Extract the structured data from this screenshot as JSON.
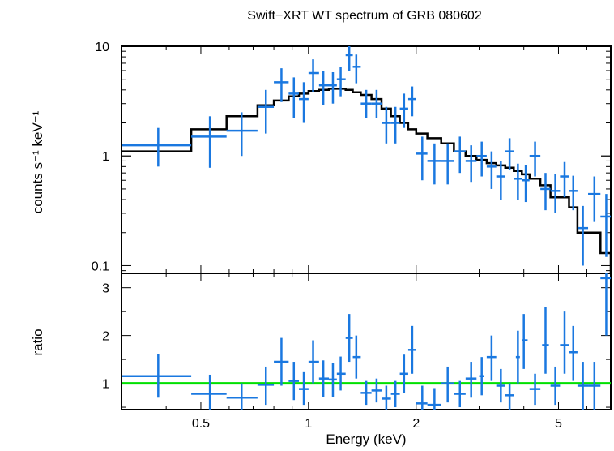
{
  "chart_data": [
    {
      "type": "scatter",
      "panel": "spectrum",
      "title": "Swift−XRT WT spectrum of GRB 080602",
      "xlabel": "Energy (keV)",
      "ylabel": "counts s⁻¹ keV⁻¹",
      "xscale": "log",
      "yscale": "log",
      "xlim": [
        0.3,
        7.0
      ],
      "ylim": [
        0.085,
        10
      ],
      "yticks": [
        0.1,
        1,
        10
      ],
      "ytick_labels": [
        "0.1",
        "1",
        "10"
      ],
      "colors": {
        "data": "#1a78e0",
        "model": "#000000"
      },
      "data_points": [
        {
          "x": 0.38,
          "xlo": 0.3,
          "xhi": 0.47,
          "y": 1.25,
          "ylo": 0.8,
          "yhi": 1.8
        },
        {
          "x": 0.53,
          "xlo": 0.47,
          "xhi": 0.59,
          "y": 1.5,
          "ylo": 0.78,
          "yhi": 2.3
        },
        {
          "x": 0.65,
          "xlo": 0.59,
          "xhi": 0.72,
          "y": 1.7,
          "ylo": 1.0,
          "yhi": 2.5
        },
        {
          "x": 0.76,
          "xlo": 0.72,
          "xhi": 0.8,
          "y": 2.8,
          "ylo": 1.6,
          "yhi": 4.0
        },
        {
          "x": 0.84,
          "xlo": 0.8,
          "xhi": 0.88,
          "y": 4.7,
          "ylo": 3.1,
          "yhi": 6.3
        },
        {
          "x": 0.91,
          "xlo": 0.88,
          "xhi": 0.94,
          "y": 3.7,
          "ylo": 2.2,
          "yhi": 5.2
        },
        {
          "x": 0.97,
          "xlo": 0.94,
          "xhi": 1.0,
          "y": 3.3,
          "ylo": 2.0,
          "yhi": 4.7
        },
        {
          "x": 1.03,
          "xlo": 1.0,
          "xhi": 1.07,
          "y": 5.7,
          "ylo": 3.8,
          "yhi": 7.6
        },
        {
          "x": 1.1,
          "xlo": 1.07,
          "xhi": 1.14,
          "y": 4.4,
          "ylo": 2.9,
          "yhi": 6.0
        },
        {
          "x": 1.17,
          "xlo": 1.14,
          "xhi": 1.2,
          "y": 4.4,
          "ylo": 3.0,
          "yhi": 5.8
        },
        {
          "x": 1.23,
          "xlo": 1.2,
          "xhi": 1.27,
          "y": 5.0,
          "ylo": 3.5,
          "yhi": 6.5
        },
        {
          "x": 1.3,
          "xlo": 1.27,
          "xhi": 1.33,
          "y": 8.3,
          "ylo": 6.0,
          "yhi": 10.0
        },
        {
          "x": 1.36,
          "xlo": 1.33,
          "xhi": 1.4,
          "y": 6.5,
          "ylo": 4.6,
          "yhi": 8.4
        },
        {
          "x": 1.45,
          "xlo": 1.4,
          "xhi": 1.5,
          "y": 3.0,
          "ylo": 2.2,
          "yhi": 4.0
        },
        {
          "x": 1.55,
          "xlo": 1.5,
          "xhi": 1.6,
          "y": 3.0,
          "ylo": 2.2,
          "yhi": 4.0
        },
        {
          "x": 1.65,
          "xlo": 1.6,
          "xhi": 1.7,
          "y": 2.0,
          "ylo": 1.3,
          "yhi": 2.8
        },
        {
          "x": 1.75,
          "xlo": 1.7,
          "xhi": 1.8,
          "y": 2.0,
          "ylo": 1.3,
          "yhi": 2.8
        },
        {
          "x": 1.85,
          "xlo": 1.8,
          "xhi": 1.9,
          "y": 2.7,
          "ylo": 1.8,
          "yhi": 3.7
        },
        {
          "x": 1.95,
          "xlo": 1.9,
          "xhi": 2.0,
          "y": 3.3,
          "ylo": 2.3,
          "yhi": 4.3
        },
        {
          "x": 2.08,
          "xlo": 2.0,
          "xhi": 2.15,
          "y": 1.05,
          "ylo": 0.6,
          "yhi": 1.5
        },
        {
          "x": 2.25,
          "xlo": 2.15,
          "xhi": 2.35,
          "y": 0.9,
          "ylo": 0.55,
          "yhi": 1.3
        },
        {
          "x": 2.45,
          "xlo": 2.35,
          "xhi": 2.55,
          "y": 0.9,
          "ylo": 0.55,
          "yhi": 1.3
        },
        {
          "x": 2.65,
          "xlo": 2.55,
          "xhi": 2.75,
          "y": 1.1,
          "ylo": 0.7,
          "yhi": 1.5
        },
        {
          "x": 2.85,
          "xlo": 2.75,
          "xhi": 2.95,
          "y": 0.9,
          "ylo": 0.58,
          "yhi": 1.25
        },
        {
          "x": 3.05,
          "xlo": 2.95,
          "xhi": 3.15,
          "y": 1.0,
          "ylo": 0.65,
          "yhi": 1.35
        },
        {
          "x": 3.25,
          "xlo": 3.15,
          "xhi": 3.35,
          "y": 0.8,
          "ylo": 0.5,
          "yhi": 1.1
        },
        {
          "x": 3.45,
          "xlo": 3.35,
          "xhi": 3.55,
          "y": 0.65,
          "ylo": 0.4,
          "yhi": 0.9
        },
        {
          "x": 3.65,
          "xlo": 3.55,
          "xhi": 3.75,
          "y": 1.1,
          "ylo": 0.75,
          "yhi": 1.45
        },
        {
          "x": 3.85,
          "xlo": 3.75,
          "xhi": 3.95,
          "y": 0.62,
          "ylo": 0.4,
          "yhi": 0.85
        },
        {
          "x": 4.05,
          "xlo": 3.95,
          "xhi": 4.15,
          "y": 0.6,
          "ylo": 0.38,
          "yhi": 0.82
        },
        {
          "x": 4.3,
          "xlo": 4.15,
          "xhi": 4.45,
          "y": 1.0,
          "ylo": 0.65,
          "yhi": 1.35
        },
        {
          "x": 4.6,
          "xlo": 4.45,
          "xhi": 4.75,
          "y": 0.5,
          "ylo": 0.32,
          "yhi": 0.7
        },
        {
          "x": 4.9,
          "xlo": 4.75,
          "xhi": 5.05,
          "y": 0.48,
          "ylo": 0.3,
          "yhi": 0.68
        },
        {
          "x": 5.2,
          "xlo": 5.05,
          "xhi": 5.35,
          "y": 0.65,
          "ylo": 0.42,
          "yhi": 0.88
        },
        {
          "x": 5.5,
          "xlo": 5.35,
          "xhi": 5.65,
          "y": 0.48,
          "ylo": 0.32,
          "yhi": 0.66
        },
        {
          "x": 5.85,
          "xlo": 5.65,
          "xhi": 6.05,
          "y": 0.22,
          "ylo": 0.1,
          "yhi": 0.35
        },
        {
          "x": 6.3,
          "xlo": 6.05,
          "xhi": 6.55,
          "y": 0.45,
          "ylo": 0.25,
          "yhi": 0.65
        },
        {
          "x": 6.8,
          "xlo": 6.55,
          "xhi": 7.0,
          "y": 0.28,
          "ylo": 0.12,
          "yhi": 0.45
        }
      ],
      "model_steps": [
        {
          "x0": 0.3,
          "x1": 0.47,
          "y": 1.1
        },
        {
          "x0": 0.47,
          "x1": 0.59,
          "y": 1.75
        },
        {
          "x0": 0.59,
          "x1": 0.72,
          "y": 2.3
        },
        {
          "x0": 0.72,
          "x1": 0.8,
          "y": 2.9
        },
        {
          "x0": 0.8,
          "x1": 0.88,
          "y": 3.2
        },
        {
          "x0": 0.88,
          "x1": 0.94,
          "y": 3.5
        },
        {
          "x0": 0.94,
          "x1": 1.0,
          "y": 3.7
        },
        {
          "x0": 1.0,
          "x1": 1.07,
          "y": 3.9
        },
        {
          "x0": 1.07,
          "x1": 1.14,
          "y": 4.0
        },
        {
          "x0": 1.14,
          "x1": 1.2,
          "y": 4.1
        },
        {
          "x0": 1.2,
          "x1": 1.27,
          "y": 4.1
        },
        {
          "x0": 1.27,
          "x1": 1.33,
          "y": 4.0
        },
        {
          "x0": 1.33,
          "x1": 1.4,
          "y": 3.8
        },
        {
          "x0": 1.4,
          "x1": 1.5,
          "y": 3.6
        },
        {
          "x0": 1.5,
          "x1": 1.6,
          "y": 3.3
        },
        {
          "x0": 1.6,
          "x1": 1.7,
          "y": 2.7
        },
        {
          "x0": 1.7,
          "x1": 1.8,
          "y": 2.3
        },
        {
          "x0": 1.8,
          "x1": 1.9,
          "y": 2.0
        },
        {
          "x0": 1.9,
          "x1": 2.0,
          "y": 1.75
        },
        {
          "x0": 2.0,
          "x1": 2.15,
          "y": 1.6
        },
        {
          "x0": 2.15,
          "x1": 2.35,
          "y": 1.45
        },
        {
          "x0": 2.35,
          "x1": 2.55,
          "y": 1.3
        },
        {
          "x0": 2.55,
          "x1": 2.75,
          "y": 1.1
        },
        {
          "x0": 2.75,
          "x1": 2.95,
          "y": 1.0
        },
        {
          "x0": 2.95,
          "x1": 3.15,
          "y": 0.92
        },
        {
          "x0": 3.15,
          "x1": 3.35,
          "y": 0.86
        },
        {
          "x0": 3.35,
          "x1": 3.55,
          "y": 0.82
        },
        {
          "x0": 3.55,
          "x1": 3.75,
          "y": 0.78
        },
        {
          "x0": 3.75,
          "x1": 3.95,
          "y": 0.73
        },
        {
          "x0": 3.95,
          "x1": 4.15,
          "y": 0.68
        },
        {
          "x0": 4.15,
          "x1": 4.45,
          "y": 0.62
        },
        {
          "x0": 4.45,
          "x1": 4.75,
          "y": 0.54
        },
        {
          "x0": 4.75,
          "x1": 5.05,
          "y": 0.42
        },
        {
          "x0": 5.05,
          "x1": 5.35,
          "y": 0.42
        },
        {
          "x0": 5.35,
          "x1": 5.65,
          "y": 0.34
        },
        {
          "x0": 5.65,
          "x1": 6.05,
          "y": 0.2
        },
        {
          "x0": 6.05,
          "x1": 6.55,
          "y": 0.2
        },
        {
          "x0": 6.55,
          "x1": 7.0,
          "y": 0.13
        }
      ]
    },
    {
      "type": "scatter",
      "panel": "ratio",
      "xlabel": "Energy (keV)",
      "ylabel": "ratio",
      "xscale": "log",
      "yscale": "linear",
      "xlim": [
        0.3,
        7.0
      ],
      "ylim": [
        0.45,
        3.3
      ],
      "yticks": [
        1,
        2,
        3
      ],
      "ytick_labels": [
        "1",
        "2",
        "3"
      ],
      "xticks": [
        0.5,
        1,
        2,
        5
      ],
      "xtick_labels": [
        "0.5",
        "1",
        "2",
        "5"
      ],
      "reference_line": 1,
      "colors": {
        "data": "#1a78e0",
        "reference": "#00e000"
      },
      "data_points": [
        {
          "x": 0.38,
          "xlo": 0.3,
          "xhi": 0.47,
          "y": 1.15,
          "ylo": 0.7,
          "yhi": 1.62
        },
        {
          "x": 0.53,
          "xlo": 0.47,
          "xhi": 0.59,
          "y": 0.78,
          "ylo": 0.45,
          "yhi": 1.18
        },
        {
          "x": 0.65,
          "xlo": 0.59,
          "xhi": 0.72,
          "y": 0.7,
          "ylo": 0.45,
          "yhi": 1.0
        },
        {
          "x": 0.76,
          "xlo": 0.72,
          "xhi": 0.8,
          "y": 0.97,
          "ylo": 0.55,
          "yhi": 1.35
        },
        {
          "x": 0.84,
          "xlo": 0.8,
          "xhi": 0.88,
          "y": 1.45,
          "ylo": 0.95,
          "yhi": 1.95
        },
        {
          "x": 0.91,
          "xlo": 0.88,
          "xhi": 0.94,
          "y": 1.05,
          "ylo": 0.65,
          "yhi": 1.45
        },
        {
          "x": 0.97,
          "xlo": 0.94,
          "xhi": 1.0,
          "y": 0.88,
          "ylo": 0.55,
          "yhi": 1.25
        },
        {
          "x": 1.03,
          "xlo": 1.0,
          "xhi": 1.07,
          "y": 1.45,
          "ylo": 1.0,
          "yhi": 1.9
        },
        {
          "x": 1.1,
          "xlo": 1.07,
          "xhi": 1.14,
          "y": 1.1,
          "ylo": 0.72,
          "yhi": 1.48
        },
        {
          "x": 1.17,
          "xlo": 1.14,
          "xhi": 1.2,
          "y": 1.08,
          "ylo": 0.72,
          "yhi": 1.42
        },
        {
          "x": 1.23,
          "xlo": 1.2,
          "xhi": 1.27,
          "y": 1.2,
          "ylo": 0.85,
          "yhi": 1.56
        },
        {
          "x": 1.3,
          "xlo": 1.27,
          "xhi": 1.33,
          "y": 1.95,
          "ylo": 1.45,
          "yhi": 2.45
        },
        {
          "x": 1.36,
          "xlo": 1.33,
          "xhi": 1.4,
          "y": 1.55,
          "ylo": 1.1,
          "yhi": 2.0
        },
        {
          "x": 1.45,
          "xlo": 1.4,
          "xhi": 1.5,
          "y": 0.8,
          "ylo": 0.55,
          "yhi": 1.05
        },
        {
          "x": 1.55,
          "xlo": 1.5,
          "xhi": 1.6,
          "y": 0.85,
          "ylo": 0.6,
          "yhi": 1.1
        },
        {
          "x": 1.65,
          "xlo": 1.6,
          "xhi": 1.7,
          "y": 0.68,
          "ylo": 0.45,
          "yhi": 0.95
        },
        {
          "x": 1.75,
          "xlo": 1.7,
          "xhi": 1.8,
          "y": 0.78,
          "ylo": 0.5,
          "yhi": 1.05
        },
        {
          "x": 1.85,
          "xlo": 1.8,
          "xhi": 1.9,
          "y": 1.2,
          "ylo": 0.8,
          "yhi": 1.6
        },
        {
          "x": 1.95,
          "xlo": 1.9,
          "xhi": 2.0,
          "y": 1.7,
          "ylo": 1.2,
          "yhi": 2.2
        },
        {
          "x": 2.08,
          "xlo": 2.0,
          "xhi": 2.15,
          "y": 0.58,
          "ylo": 0.45,
          "yhi": 0.95
        },
        {
          "x": 2.25,
          "xlo": 2.15,
          "xhi": 2.35,
          "y": 0.55,
          "ylo": 0.45,
          "yhi": 0.9
        },
        {
          "x": 2.45,
          "xlo": 2.35,
          "xhi": 2.55,
          "y": 1.0,
          "ylo": 0.6,
          "yhi": 1.35
        },
        {
          "x": 2.65,
          "xlo": 2.55,
          "xhi": 2.75,
          "y": 0.78,
          "ylo": 0.5,
          "yhi": 1.05
        },
        {
          "x": 2.85,
          "xlo": 2.75,
          "xhi": 2.95,
          "y": 1.1,
          "ylo": 0.7,
          "yhi": 1.45
        },
        {
          "x": 3.05,
          "xlo": 3.0,
          "xhi": 3.1,
          "y": 1.15,
          "ylo": 0.75,
          "yhi": 1.55
        },
        {
          "x": 3.25,
          "xlo": 3.15,
          "xhi": 3.35,
          "y": 1.55,
          "ylo": 1.05,
          "yhi": 2.0
        },
        {
          "x": 3.45,
          "xlo": 3.35,
          "xhi": 3.55,
          "y": 0.95,
          "ylo": 0.6,
          "yhi": 1.3
        },
        {
          "x": 3.65,
          "xlo": 3.55,
          "xhi": 3.75,
          "y": 0.75,
          "ylo": 0.45,
          "yhi": 1.0
        },
        {
          "x": 3.85,
          "xlo": 3.8,
          "xhi": 3.9,
          "y": 1.55,
          "ylo": 1.0,
          "yhi": 2.1
        },
        {
          "x": 4.0,
          "xlo": 3.95,
          "xhi": 4.1,
          "y": 1.9,
          "ylo": 1.3,
          "yhi": 2.45
        },
        {
          "x": 4.3,
          "xlo": 4.15,
          "xhi": 4.45,
          "y": 0.88,
          "ylo": 0.55,
          "yhi": 1.2
        },
        {
          "x": 4.6,
          "xlo": 4.5,
          "xhi": 4.7,
          "y": 1.8,
          "ylo": 1.2,
          "yhi": 2.6
        },
        {
          "x": 4.9,
          "xlo": 4.75,
          "xhi": 5.05,
          "y": 0.95,
          "ylo": 0.55,
          "yhi": 1.35
        },
        {
          "x": 5.2,
          "xlo": 5.05,
          "xhi": 5.35,
          "y": 1.8,
          "ylo": 1.2,
          "yhi": 2.5
        },
        {
          "x": 5.5,
          "xlo": 5.35,
          "xhi": 5.65,
          "y": 1.65,
          "ylo": 1.05,
          "yhi": 2.2
        },
        {
          "x": 5.85,
          "xlo": 5.65,
          "xhi": 6.05,
          "y": 0.95,
          "ylo": 0.45,
          "yhi": 1.45
        },
        {
          "x": 6.3,
          "xlo": 6.05,
          "xhi": 6.55,
          "y": 0.95,
          "ylo": 0.45,
          "yhi": 1.45
        },
        {
          "x": 6.8,
          "xlo": 6.55,
          "xhi": 7.0,
          "y": 3.2,
          "ylo": 2.0,
          "yhi": 3.3
        }
      ]
    }
  ]
}
